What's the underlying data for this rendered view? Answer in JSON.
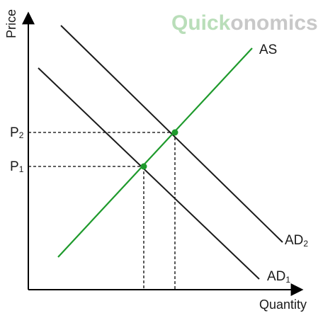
{
  "logo": {
    "part1": "Quick",
    "part2": "onomics",
    "color1": "#b9deb9",
    "color2": "#c8c8c8"
  },
  "axes": {
    "y_title": "Price",
    "x_title": "Quantity"
  },
  "curves": {
    "as": {
      "label": "AS",
      "color": "#1e9a2c"
    },
    "ad2": {
      "label_main": "AD",
      "label_sub": "2"
    },
    "ad1": {
      "label_main": "AD",
      "label_sub": "1"
    }
  },
  "levels": {
    "p2": {
      "label_main": "P",
      "label_sub": "2"
    },
    "p1": {
      "label_main": "P",
      "label_sub": "1"
    }
  },
  "colors": {
    "equilibrium_point": "#1e9a2c"
  }
}
